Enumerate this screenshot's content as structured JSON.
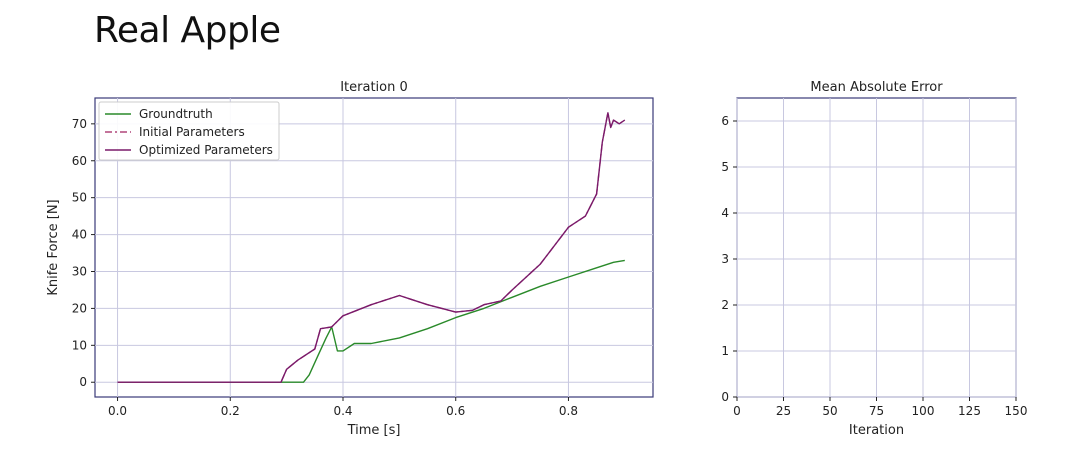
{
  "page": {
    "title": "Real Apple"
  },
  "colors": {
    "groundtruth": "#2a8a2a",
    "initial": "#b0477a",
    "optimized": "#7a1a6a",
    "frame": "#3a3a78",
    "grid": "#c8c8e0"
  },
  "chart_data": [
    {
      "type": "line",
      "title": "Iteration 0",
      "xlabel": "Time [s]",
      "ylabel": "Knife Force [N]",
      "xlim": [
        -0.04,
        0.95
      ],
      "ylim": [
        -4,
        77
      ],
      "xticks": [
        0.0,
        0.2,
        0.4,
        0.6,
        0.8
      ],
      "xtick_labels": [
        "0.0",
        "0.2",
        "0.4",
        "0.6",
        "0.8"
      ],
      "yticks": [
        0,
        10,
        20,
        30,
        40,
        50,
        60,
        70
      ],
      "ytick_labels": [
        "0",
        "10",
        "20",
        "30",
        "40",
        "50",
        "60",
        "70"
      ],
      "grid": true,
      "legend": "top-left",
      "series": [
        {
          "name": "Groundtruth",
          "style": "solid",
          "x": [
            0.0,
            0.3,
            0.33,
            0.34,
            0.355,
            0.37,
            0.38,
            0.39,
            0.4,
            0.42,
            0.45,
            0.5,
            0.55,
            0.6,
            0.65,
            0.7,
            0.75,
            0.8,
            0.85,
            0.88,
            0.9
          ],
          "y": [
            0,
            0,
            0,
            2,
            7,
            12,
            15,
            8.5,
            8.5,
            10.5,
            10.5,
            12,
            14.5,
            17.5,
            20,
            23,
            26,
            28.5,
            31,
            32.5,
            33
          ]
        },
        {
          "name": "Initial Parameters",
          "style": "dashdot",
          "x": [
            0.0,
            0.29,
            0.3,
            0.32,
            0.35,
            0.36,
            0.38,
            0.4,
            0.45,
            0.5,
            0.52,
            0.55,
            0.6,
            0.63,
            0.65,
            0.68,
            0.7,
            0.75,
            0.8,
            0.83,
            0.85,
            0.86,
            0.87,
            0.875,
            0.88,
            0.89,
            0.9
          ],
          "y": [
            0,
            0,
            3.5,
            6,
            9,
            14.5,
            15,
            18,
            21,
            23.5,
            22.5,
            21,
            19,
            19.5,
            21,
            22,
            25,
            32,
            42,
            45,
            51,
            65,
            73,
            69,
            71,
            70,
            71
          ]
        },
        {
          "name": "Optimized Parameters",
          "style": "solid",
          "x": [
            0.0,
            0.29,
            0.3,
            0.32,
            0.35,
            0.36,
            0.38,
            0.4,
            0.45,
            0.5,
            0.52,
            0.55,
            0.6,
            0.63,
            0.65,
            0.68,
            0.7,
            0.75,
            0.8,
            0.83,
            0.85,
            0.86,
            0.87,
            0.875,
            0.88,
            0.89,
            0.9
          ],
          "y": [
            0,
            0,
            3.5,
            6,
            9,
            14.5,
            15,
            18,
            21,
            23.5,
            22.5,
            21,
            19,
            19.5,
            21,
            22,
            25,
            32,
            42,
            45,
            51,
            65,
            73,
            69,
            71,
            70,
            71
          ]
        }
      ]
    },
    {
      "type": "line",
      "title": "Mean Absolute Error",
      "xlabel": "Iteration",
      "ylabel": "",
      "xlim": [
        0,
        150
      ],
      "ylim": [
        0,
        6.5
      ],
      "xticks": [
        0,
        25,
        50,
        75,
        100,
        125,
        150
      ],
      "xtick_labels": [
        "0",
        "25",
        "50",
        "75",
        "100",
        "125",
        "150"
      ],
      "yticks": [
        0,
        1,
        2,
        3,
        4,
        5,
        6
      ],
      "ytick_labels": [
        "0",
        "1",
        "2",
        "3",
        "4",
        "5",
        "6"
      ],
      "grid": true,
      "series": []
    }
  ]
}
